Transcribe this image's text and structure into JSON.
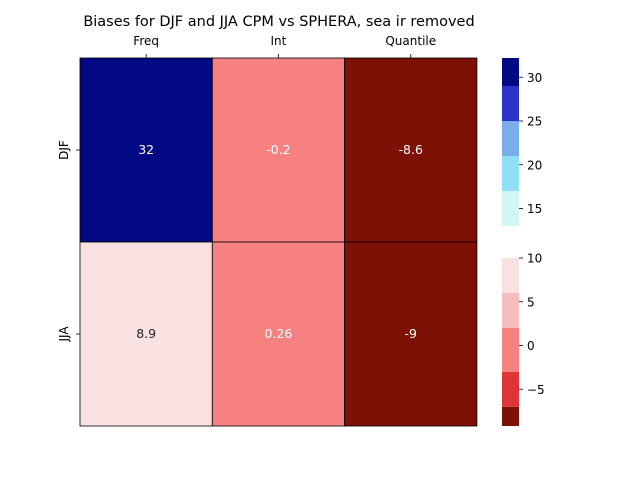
{
  "chart_data": {
    "type": "heatmap",
    "title": "Biases for DJF and JJA CPM vs SPHERA, sea ir removed",
    "columns": [
      "Freq",
      "Int",
      "Quantile"
    ],
    "rows": [
      "DJF",
      "JJA"
    ],
    "values": [
      [
        32,
        -0.2,
        -8.6
      ],
      [
        8.9,
        0.26,
        -9
      ]
    ],
    "cell_labels": [
      [
        "32",
        "-0.2",
        "-8.6"
      ],
      [
        "8.9",
        "0.26",
        "-9"
      ]
    ],
    "grid": true,
    "x_tick_position": "top",
    "colorbars": [
      {
        "name": "positive",
        "range": [
          13,
          32.2
        ],
        "bins": [
          {
            "from": 13,
            "to": 17,
            "color": "#d2f5f6"
          },
          {
            "from": 17,
            "to": 21,
            "color": "#93def7"
          },
          {
            "from": 21,
            "to": 25,
            "color": "#7aaeeb"
          },
          {
            "from": 25,
            "to": 29,
            "color": "#2b33c8"
          },
          {
            "from": 29,
            "to": 32.2,
            "color": "#030883"
          }
        ],
        "ticks": [
          15,
          20,
          25,
          30
        ],
        "tick_labels": [
          "15",
          "20",
          "25",
          "30"
        ]
      },
      {
        "name": "negative",
        "range": [
          -9.2,
          10
        ],
        "bins": [
          {
            "from": -9.2,
            "to": -7,
            "color": "#7e1105"
          },
          {
            "from": -7,
            "to": -3,
            "color": "#df3537"
          },
          {
            "from": -3,
            "to": 2,
            "color": "#f58180"
          },
          {
            "from": 2,
            "to": 6,
            "color": "#f7bcbc"
          },
          {
            "from": 6,
            "to": 10,
            "color": "#fae1e1"
          }
        ],
        "ticks": [
          -5,
          0,
          5,
          10
        ],
        "tick_labels": [
          "−5",
          "0",
          "5",
          "10"
        ]
      }
    ],
    "cell_colors": [
      [
        "#030883",
        "#f58180",
        "#7e1105"
      ],
      [
        "#fae1e1",
        "#f58180",
        "#7e1105"
      ]
    ],
    "cell_text_colors": [
      [
        "#ffffff",
        "#ffffff",
        "#ffffff"
      ],
      [
        "#262626",
        "#ffffff",
        "#ffffff"
      ]
    ]
  }
}
